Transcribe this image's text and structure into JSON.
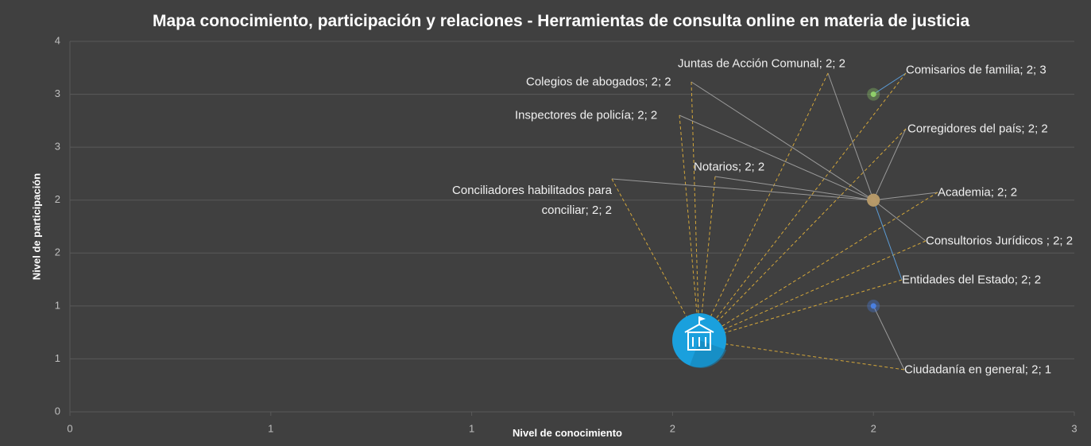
{
  "chart_data": {
    "type": "scatter",
    "title": "Mapa conocimiento, participación y relaciones  - Herramientas de consulta online en materia de justicia",
    "x_label": "Nivel de conocimiento",
    "y_label": "Nivel de participación",
    "xlim": [
      0,
      2.5
    ],
    "xticks": [
      0,
      {
        "value": 0.5,
        "label": "1"
      },
      {
        "value": 1,
        "label": "1"
      },
      {
        "value": 1.5,
        "label": "2"
      },
      {
        "value": 2,
        "label": "2"
      },
      {
        "value": 2.5,
        "label": "3"
      }
    ],
    "ylim": [
      0,
      3.5
    ],
    "yticks": [
      0,
      {
        "value": 0.5,
        "label": "1"
      },
      {
        "value": 1,
        "label": "1"
      },
      {
        "value": 1.5,
        "label": "2"
      },
      {
        "value": 2,
        "label": "2"
      },
      {
        "value": 2.5,
        "label": "3"
      },
      {
        "value": 3,
        "label": "3"
      },
      {
        "value": 3.5,
        "label": "4"
      }
    ],
    "grid": true,
    "series": [
      {
        "name": "Juntas de Acción Comunal",
        "color": "#b89a6a",
        "x": 2,
        "y": 2,
        "value_label": "Juntas de Acción Comunal; 2; 2"
      },
      {
        "name": "Comisarios de familia",
        "color": "#8fcf6a",
        "x": 2,
        "y": 3,
        "value_label": "Comisarios de familia; 2; 3"
      },
      {
        "name": "Colegios de abogados",
        "color": "#b89a6a",
        "x": 2,
        "y": 2,
        "value_label": "Colegios de abogados; 2; 2"
      },
      {
        "name": "Inspectores de policía",
        "color": "#b89a6a",
        "x": 2,
        "y": 2,
        "value_label": "Inspectores de policía; 2; 2"
      },
      {
        "name": "Corregidores del país",
        "color": "#b89a6a",
        "x": 2,
        "y": 2,
        "value_label": "Corregidores del país; 2; 2"
      },
      {
        "name": "Notarios",
        "color": "#b89a6a",
        "x": 2,
        "y": 2,
        "value_label": "Notarios; 2; 2"
      },
      {
        "name": "Conciliadores habilitados para conciliar",
        "color": "#b89a6a",
        "x": 2,
        "y": 2,
        "value_label": "Conciliadores habilitados para conciliar; 2; 2"
      },
      {
        "name": "Academia",
        "color": "#b89a6a",
        "x": 2,
        "y": 2,
        "value_label": "Academia; 2; 2"
      },
      {
        "name": "Consultorios Jurídicos ",
        "color": "#b89a6a",
        "x": 2,
        "y": 2,
        "value_label": "Consultorios Jurídicos ; 2; 2"
      },
      {
        "name": "Entidades del Estado",
        "color": "#b89a6a",
        "x": 2,
        "y": 2,
        "value_label": "Entidades del Estado; 2; 2"
      },
      {
        "name": "Ciudadanía en general",
        "color": "#4a7fe0",
        "x": 2,
        "y": 1,
        "value_label": "Ciudadanía en general; 2; 1"
      }
    ]
  }
}
